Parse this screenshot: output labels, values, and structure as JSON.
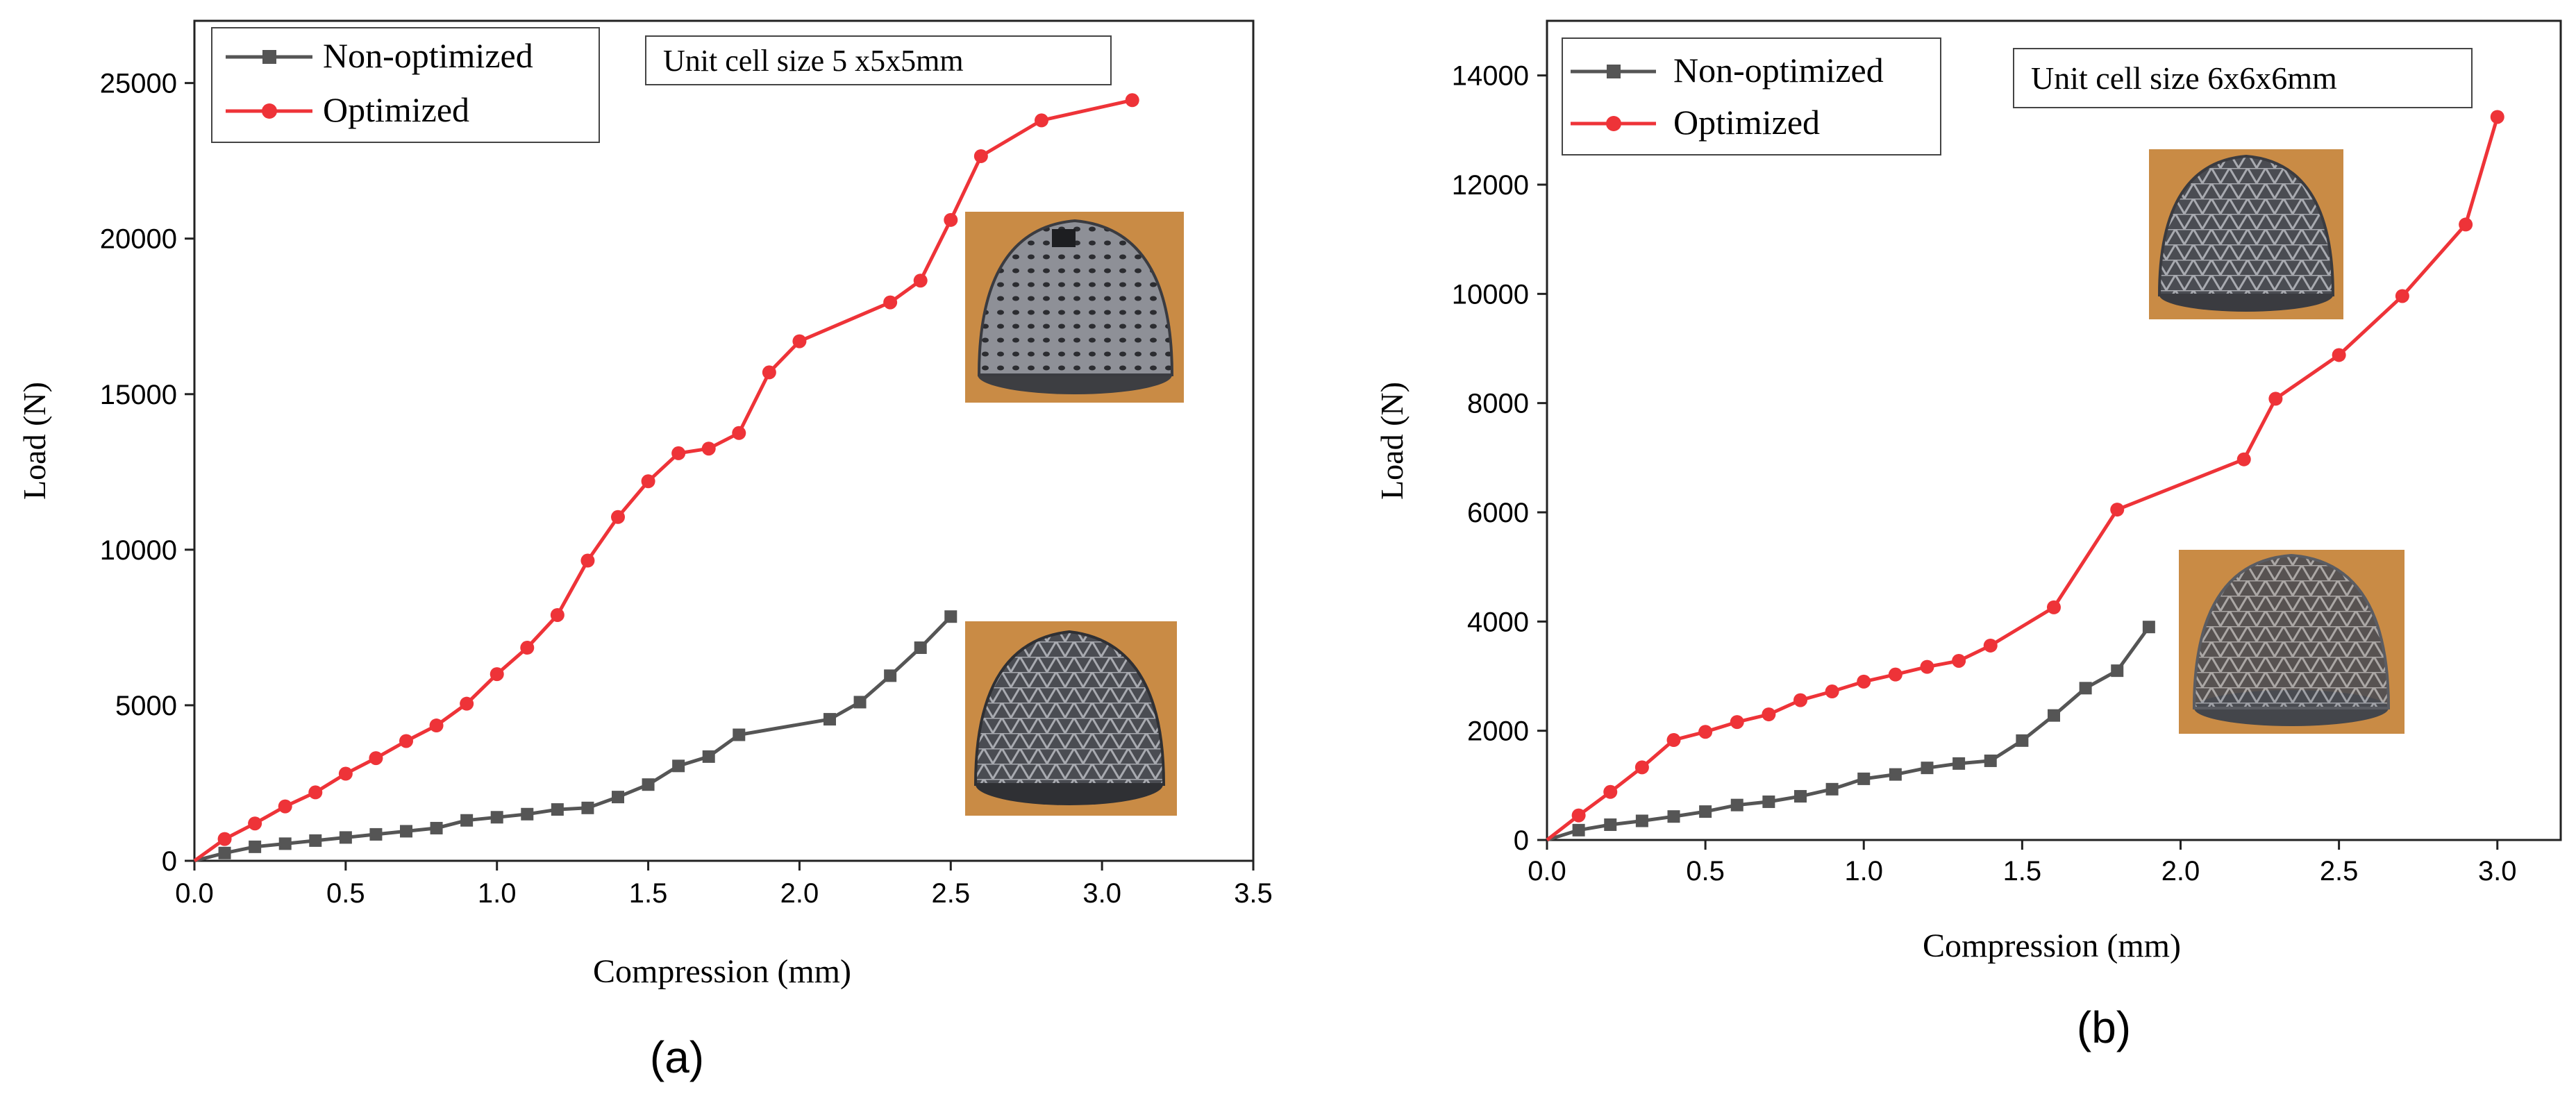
{
  "chart_data": [
    {
      "type": "line",
      "panel_label": "(a)",
      "title": "",
      "annotation": "Unit cell size 5 x5x5mm",
      "xlabel": "Compression (mm)",
      "ylabel": "Load (N)",
      "xlim": [
        0,
        3.5
      ],
      "ylim": [
        0,
        27000
      ],
      "xticks": [
        "0.0",
        "0.5",
        "1.0",
        "1.5",
        "2.0",
        "2.5",
        "3.0",
        "3.5"
      ],
      "yticks": [
        "0",
        "5000",
        "10000",
        "15000",
        "20000",
        "25000"
      ],
      "grid": false,
      "legend_position": "top-left",
      "series": [
        {
          "name": "Non-optimized",
          "color": "#555555",
          "marker": "square",
          "x": [
            0,
            0.1,
            0.2,
            0.3,
            0.4,
            0.5,
            0.6,
            0.7,
            0.8,
            0.9,
            1.0,
            1.1,
            1.2,
            1.3,
            1.4,
            1.5,
            1.6,
            1.7,
            1.8,
            2.1,
            2.2,
            2.3,
            2.4,
            2.5
          ],
          "y": [
            0,
            250,
            450,
            550,
            650,
            750,
            850,
            950,
            1050,
            1300,
            1400,
            1500,
            1650,
            1700,
            2050,
            2450,
            3050,
            3350,
            4050,
            4550,
            5100,
            5950,
            6850,
            7850
          ]
        },
        {
          "name": "Optimized",
          "color": "#ee3338",
          "marker": "circle",
          "x": [
            0,
            0.1,
            0.2,
            0.3,
            0.4,
            0.5,
            0.6,
            0.7,
            0.8,
            0.9,
            1.0,
            1.1,
            1.2,
            1.3,
            1.4,
            1.5,
            1.6,
            1.7,
            1.8,
            1.9,
            2.0,
            2.3,
            2.4,
            2.5,
            2.6,
            2.8,
            3.1
          ],
          "y": [
            0,
            700,
            1200,
            1750,
            2200,
            2800,
            3300,
            3850,
            4350,
            5050,
            6000,
            6850,
            7900,
            9650,
            11050,
            12200,
            13100,
            13250,
            13750,
            15700,
            16700,
            17950,
            18650,
            20600,
            22650,
            23800,
            24450
          ]
        }
      ]
    },
    {
      "type": "line",
      "panel_label": "(b)",
      "title": "",
      "annotation": "Unit cell size 6x6x6mm",
      "xlabel": "Compression (mm)",
      "ylabel": "Load (N)",
      "xlim": [
        0,
        3.2
      ],
      "ylim": [
        0,
        15000
      ],
      "xticks": [
        "0.0",
        "0.5",
        "1.0",
        "1.5",
        "2.0",
        "2.5",
        "3.0"
      ],
      "yticks": [
        "0",
        "2000",
        "4000",
        "6000",
        "8000",
        "10000",
        "12000",
        "14000"
      ],
      "grid": false,
      "legend_position": "top-left",
      "series": [
        {
          "name": "Non-optimized",
          "color": "#555555",
          "marker": "square",
          "x": [
            0,
            0.1,
            0.2,
            0.3,
            0.4,
            0.5,
            0.6,
            0.7,
            0.8,
            0.9,
            1.0,
            1.1,
            1.2,
            1.3,
            1.4,
            1.5,
            1.6,
            1.7,
            1.8,
            1.9
          ],
          "y": [
            0,
            180,
            280,
            350,
            430,
            520,
            640,
            700,
            800,
            930,
            1120,
            1200,
            1320,
            1400,
            1450,
            1820,
            2280,
            2780,
            3100,
            3900
          ]
        },
        {
          "name": "Optimized",
          "color": "#ee3338",
          "marker": "circle",
          "x": [
            0,
            0.1,
            0.2,
            0.3,
            0.4,
            0.5,
            0.6,
            0.7,
            0.8,
            0.9,
            1.0,
            1.1,
            1.2,
            1.3,
            1.4,
            1.6,
            1.8,
            2.2,
            2.3,
            2.5,
            2.7,
            2.9,
            3.0
          ],
          "y": [
            0,
            450,
            880,
            1330,
            1830,
            1980,
            2160,
            2300,
            2560,
            2720,
            2900,
            3030,
            3170,
            3280,
            3560,
            4260,
            6050,
            6970,
            8080,
            8880,
            9960,
            11270,
            13240
          ]
        }
      ]
    }
  ],
  "photos": [
    {
      "name": "optimized-dome-photo-5mm",
      "depicts": "optimized lattice dome sample"
    },
    {
      "name": "non-optimized-dome-photo-5mm",
      "depicts": "non-optimized lattice dome sample"
    },
    {
      "name": "optimized-dome-photo-6mm",
      "depicts": "optimized lattice dome sample"
    },
    {
      "name": "non-optimized-dome-photo-6mm",
      "depicts": "non-optimized lattice dome sample"
    }
  ]
}
